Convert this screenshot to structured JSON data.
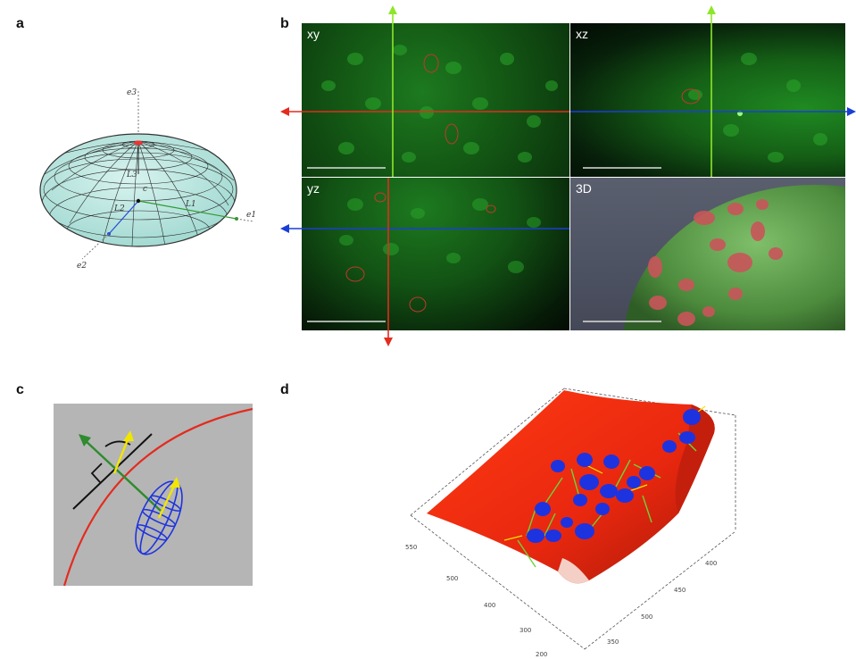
{
  "panels": {
    "a": {
      "letter": "a",
      "axes": [
        "e3",
        "e1",
        "e2"
      ],
      "center_label": "c",
      "lengths": [
        "L3",
        "L1",
        "L2"
      ]
    },
    "b": {
      "letter": "b",
      "views": [
        "xy",
        "xz",
        "yz",
        "3D"
      ]
    },
    "c": {
      "letter": "c"
    },
    "d": {
      "letter": "d",
      "ticks_left": [
        "550",
        "500",
        "400",
        "300"
      ],
      "ticks_right": [
        "400",
        "450",
        "500",
        "350"
      ],
      "tick_bottom": "200"
    }
  },
  "colors": {
    "surface_red": "#e8270f",
    "nuclei_blue": "#1e33e0",
    "normal_green": "#2e8b2e",
    "arrow_yellow": "#f2e600",
    "section_red": "#e32b1e",
    "section_blue": "#1a3fd6",
    "section_lime": "#8ee62a"
  }
}
